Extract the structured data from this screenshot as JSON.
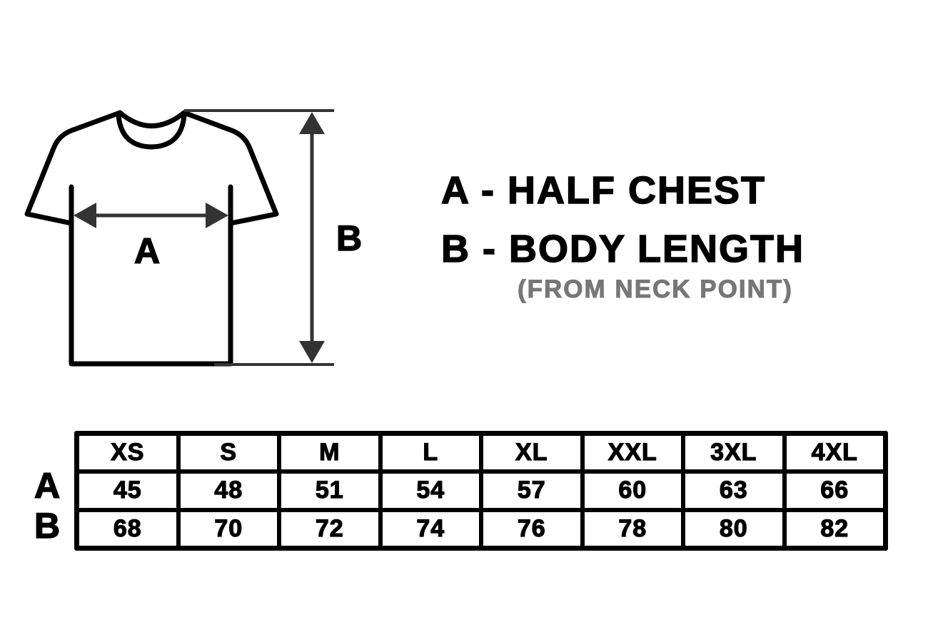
{
  "diagram": {
    "label_a": "A",
    "label_b": "B",
    "line_color": "#000000",
    "arrow_color": "#333333",
    "icon": "t-shirt-outline"
  },
  "legend": {
    "a": "A - HALF CHEST",
    "b": "B - BODY LENGTH",
    "note": "(FROM NECK POINT)",
    "note_color": "#777777"
  },
  "table": {
    "sizes": [
      "XS",
      "S",
      "M",
      "L",
      "XL",
      "XXL",
      "3XL",
      "4XL"
    ],
    "rows": [
      {
        "label": "A",
        "values": [
          "45",
          "48",
          "51",
          "54",
          "57",
          "60",
          "63",
          "66"
        ]
      },
      {
        "label": "B",
        "values": [
          "68",
          "70",
          "72",
          "74",
          "76",
          "78",
          "80",
          "82"
        ]
      }
    ]
  }
}
